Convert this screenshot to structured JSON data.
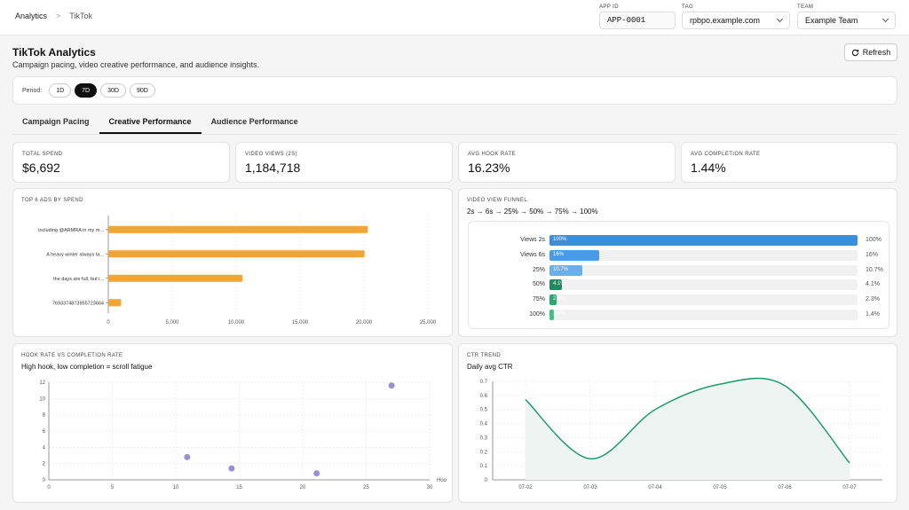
{
  "breadcrumb": {
    "root": "Analytics",
    "current": "TikTok"
  },
  "filters": {
    "app_id": {
      "label": "APP ID",
      "value": "APP-0001"
    },
    "tag": {
      "label": "TAG",
      "value": "rpbpo.example.com"
    },
    "team": {
      "label": "TEAM",
      "value": "Example Team"
    }
  },
  "page": {
    "title": "TikTok Analytics",
    "subtitle": "Campaign pacing, video creative performance, and audience insights.",
    "refresh_label": "Refresh"
  },
  "period": {
    "label": "Period:",
    "options": [
      "1D",
      "7D",
      "30D",
      "90D"
    ],
    "selected": "7D"
  },
  "tabs": [
    "Campaign Pacing",
    "Creative Performance",
    "Audience Performance"
  ],
  "active_tab": "Creative Performance",
  "kpis": [
    {
      "label": "TOTAL SPEND",
      "value": "$6,692"
    },
    {
      "label": "VIDEO VIEWS (2S)",
      "value": "1,184,718"
    },
    {
      "label": "AVG HOOK RATE",
      "value": "16.23%"
    },
    {
      "label": "AVG COMPLETION RATE",
      "value": "1.44%"
    }
  ],
  "cards": {
    "top_ads": {
      "title": "TOP 6 ADS BY SPEND"
    },
    "funnel": {
      "title": "VIDEO VIEW FUNNEL",
      "subtitle": "2s → 6s → 25% → 50% → 75% → 100%"
    },
    "hook": {
      "title": "HOOK RATE VS COMPLETION RATE",
      "subtitle": "High hook, low completion = scroll fatigue"
    },
    "ctr": {
      "title": "CTR TREND",
      "subtitle": "Daily avg CTR"
    }
  },
  "colors": {
    "bar": "#f0a535",
    "scatter": "#9b8fd4",
    "line": "#1f9a6b",
    "funnel_blue": "#3a8ee0"
  },
  "funnel_rows": [
    {
      "label": "Views 2s",
      "inner": "100%",
      "right": "100%",
      "pct": 100,
      "color": "#3a8ee0"
    },
    {
      "label": "Views 6s",
      "inner": "16%",
      "right": "16%",
      "pct": 16,
      "color": "#4a9ae6"
    },
    {
      "label": "25%",
      "inner": "10.7%",
      "right": "10.7%",
      "pct": 10.7,
      "color": "#6aaeea"
    },
    {
      "label": "50%",
      "inner": "4.1%",
      "right": "4.1%",
      "pct": 4.1,
      "color": "#1e8a5e"
    },
    {
      "label": "75%",
      "inner": "2.3%",
      "right": "2.3%",
      "pct": 2.3,
      "color": "#2aa873"
    },
    {
      "label": "100%",
      "inner": "1.4%",
      "right": "1.4%",
      "pct": 1.4,
      "color": "#3dc089"
    }
  ],
  "chart_data": [
    {
      "type": "bar",
      "orientation": "horizontal",
      "title": "TOP 6 ADS BY SPEND",
      "categories": [
        "including @ARMRA in my m...",
        "A heavy winter always ta...",
        "the days are full, but i...",
        "7693374873955723664"
      ],
      "values": [
        20300,
        20050,
        10500,
        1000
      ],
      "xlim": [
        0,
        25000
      ],
      "xticks": [
        0,
        5000,
        10000,
        15000,
        20000,
        25000
      ],
      "xtick_labels": [
        "0",
        "5,000",
        "10,000",
        "15,000",
        "20,000",
        "25,000"
      ],
      "grid": true
    },
    {
      "type": "scatter",
      "title": "HOOK RATE VS COMPLETION RATE",
      "subtitle": "High hook, low completion = scroll fatigue",
      "xlabel": "Hoo",
      "x": [
        10.9,
        14.4,
        21.1,
        27.0
      ],
      "y": [
        2.8,
        1.4,
        0.8,
        11.6
      ],
      "xlim": [
        0,
        30
      ],
      "ylim": [
        0,
        12
      ],
      "xticks": [
        0,
        5,
        10,
        15,
        20,
        25,
        30
      ],
      "yticks": [
        0,
        2,
        4,
        6,
        8,
        10,
        12
      ],
      "grid": true
    },
    {
      "type": "area",
      "title": "CTR TREND",
      "subtitle": "Daily avg CTR",
      "categories": [
        "07-02",
        "07-03",
        "07-04",
        "07-05",
        "07-06",
        "07-07"
      ],
      "values": [
        0.57,
        0.15,
        0.5,
        0.68,
        0.67,
        0.12
      ],
      "ylim": [
        0,
        0.7
      ],
      "yticks": [
        0,
        0.1,
        0.2,
        0.3,
        0.4,
        0.5,
        0.6,
        0.7
      ],
      "grid": true
    }
  ]
}
